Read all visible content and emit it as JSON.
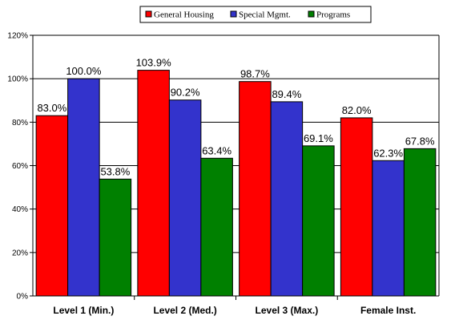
{
  "chart_data": {
    "type": "bar",
    "categories": [
      "Level 1 (Min.)",
      "Level 2 (Med.)",
      "Level 3 (Max.)",
      "Female Inst."
    ],
    "series": [
      {
        "name": "General Housing",
        "color": "#ff0000",
        "values": [
          83.0,
          103.9,
          98.7,
          82.0
        ],
        "labels": [
          "83.0%",
          "103.9%",
          "98.7%",
          "82.0%"
        ]
      },
      {
        "name": "Special Mgmt.",
        "color": "#3333cc",
        "values": [
          100.0,
          90.2,
          89.4,
          62.3
        ],
        "labels": [
          "100.0%",
          "90.2%",
          "89.4%",
          "62.3%"
        ]
      },
      {
        "name": "Programs",
        "color": "#008000",
        "values": [
          53.8,
          63.4,
          69.1,
          67.8
        ],
        "labels": [
          "53.8%",
          "63.4%",
          "69.1%",
          "67.8%"
        ]
      }
    ],
    "yticks": [
      0,
      20,
      40,
      60,
      80,
      100,
      120
    ],
    "ytick_labels": [
      "0%",
      "20%",
      "40%",
      "60%",
      "80%",
      "100%",
      "120%"
    ],
    "ylim": [
      0,
      120
    ],
    "title": "",
    "xlabel": "",
    "ylabel": "",
    "grid": true,
    "legend_position": "top-center"
  }
}
